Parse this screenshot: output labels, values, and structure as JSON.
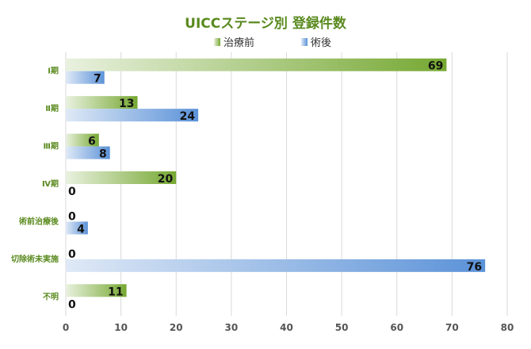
{
  "chart_data": {
    "type": "bar",
    "orientation": "horizontal",
    "title": "UICCステージ別 登録件数",
    "categories": [
      "Ⅰ期",
      "Ⅱ期",
      "Ⅲ期",
      "Ⅳ期",
      "術前治療後",
      "切除術未実施",
      "不明"
    ],
    "series": [
      {
        "name": "治療前",
        "values": [
          69,
          13,
          6,
          20,
          0,
          0,
          11
        ],
        "color": "#76a832",
        "color_light": "#e9f1df"
      },
      {
        "name": "術後",
        "values": [
          7,
          24,
          8,
          0,
          4,
          76,
          0
        ],
        "color": "#5b92d8",
        "color_light": "#dfe9f6"
      }
    ],
    "xlim": [
      0,
      80
    ],
    "xticks": [
      0,
      10,
      20,
      30,
      40,
      50,
      60,
      70,
      80
    ],
    "grid": true,
    "legend_position": "top-center",
    "colors": {
      "title": "#5a8a1f",
      "category_label": "#5a8a1f",
      "tick_label": "#555555",
      "grid": "#d9d9d9"
    }
  }
}
